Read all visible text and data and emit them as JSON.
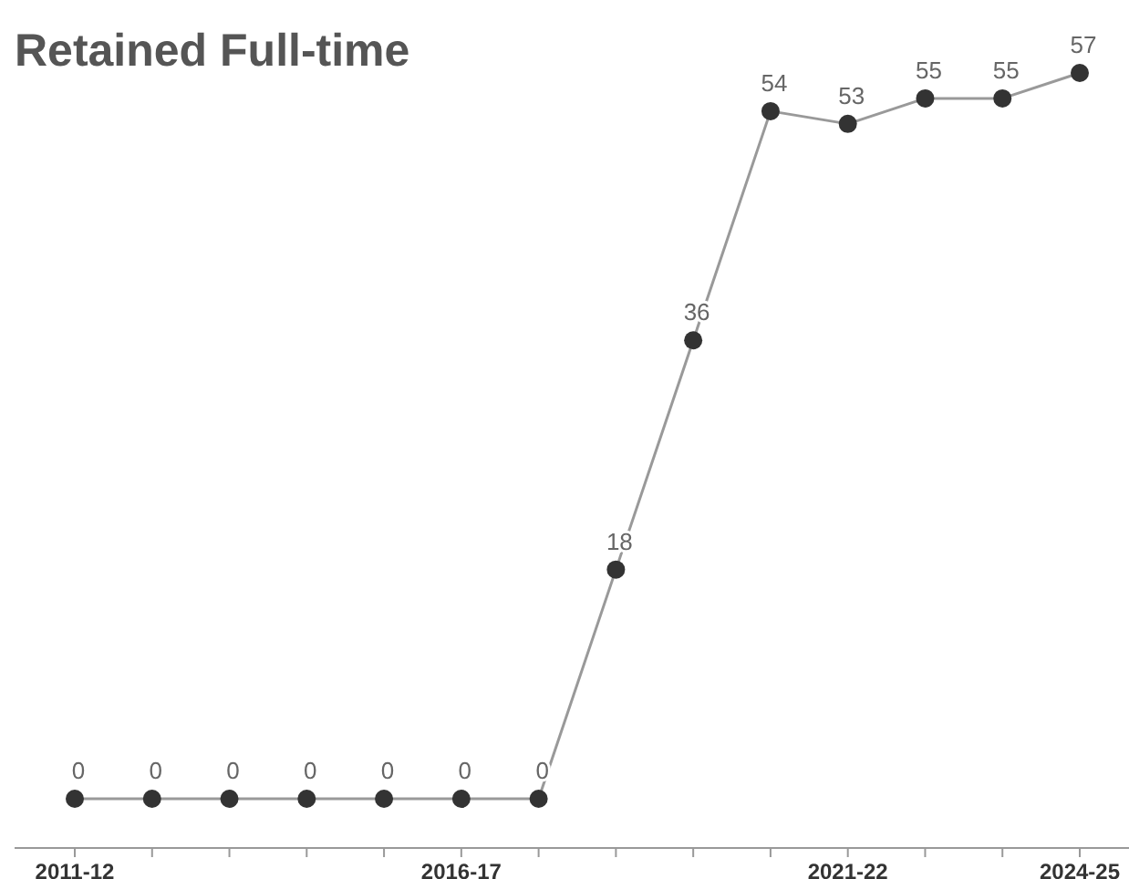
{
  "chart_data": {
    "type": "line",
    "title": "Retained Full-time",
    "categories": [
      "2011-12",
      null,
      null,
      null,
      null,
      "2016-17",
      null,
      null,
      null,
      null,
      "2021-22",
      null,
      null,
      "2024-25"
    ],
    "series": [
      {
        "color": "#333333",
        "values": [
          0,
          0,
          0,
          0,
          0,
          0,
          0,
          18,
          36,
          54,
          53,
          55,
          55,
          57
        ]
      }
    ],
    "data_labels": true,
    "marker": "circle"
  }
}
